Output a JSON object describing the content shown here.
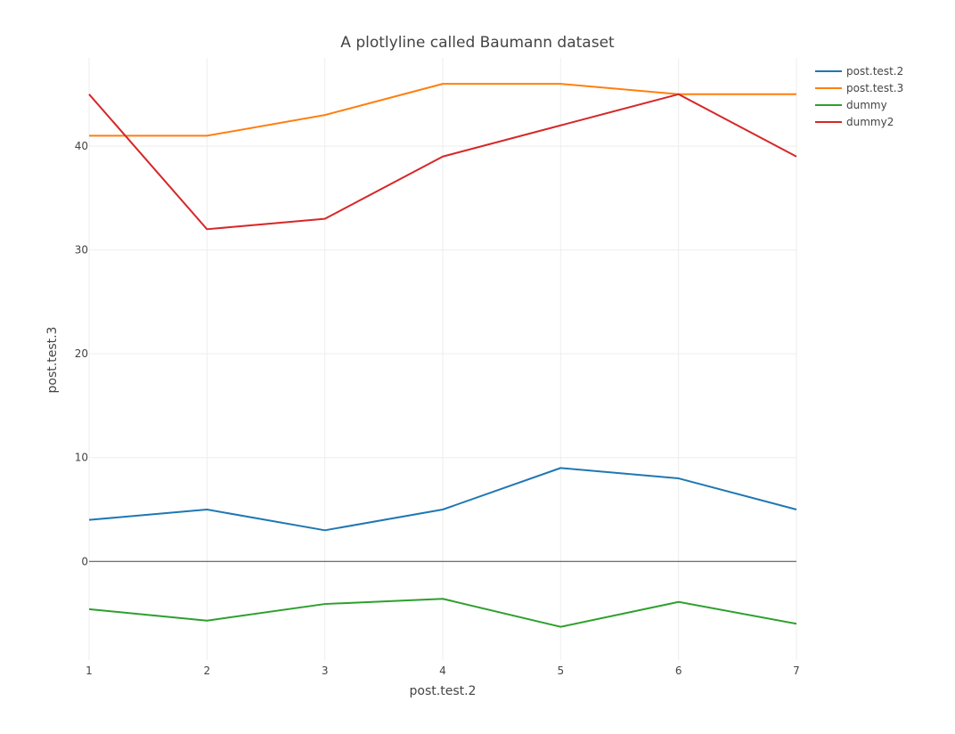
{
  "chart_data": {
    "type": "line",
    "title": "A plotlyline called Baumann dataset",
    "xlabel": "post.test.2",
    "ylabel": "post.test.3",
    "x": [
      1,
      2,
      3,
      4,
      5,
      6,
      7
    ],
    "xticks": [
      "1",
      "2",
      "3",
      "4",
      "5",
      "6",
      "7"
    ],
    "yticks": [
      "0",
      "10",
      "20",
      "30",
      "40"
    ],
    "ytick_values": [
      0,
      10,
      20,
      30,
      40
    ],
    "xlim": [
      1,
      7
    ],
    "ylim": [
      -9.5,
      48.5
    ],
    "grid": true,
    "legend_position": "top-right",
    "series": [
      {
        "name": "post.test.2",
        "color": "#1f77b4",
        "values": [
          4,
          5,
          3,
          5,
          9,
          8,
          5
        ]
      },
      {
        "name": "post.test.3",
        "color": "#ff7f0e",
        "values": [
          41,
          41,
          43,
          46,
          46,
          45,
          45
        ]
      },
      {
        "name": "dummy",
        "color": "#2ca02c",
        "values": [
          -4.6,
          -5.7,
          -4.1,
          -3.6,
          -6.3,
          -3.9,
          -6.0
        ]
      },
      {
        "name": "dummy2",
        "color": "#d62728",
        "values": [
          45,
          32,
          33,
          39,
          42,
          45,
          39
        ]
      }
    ]
  }
}
